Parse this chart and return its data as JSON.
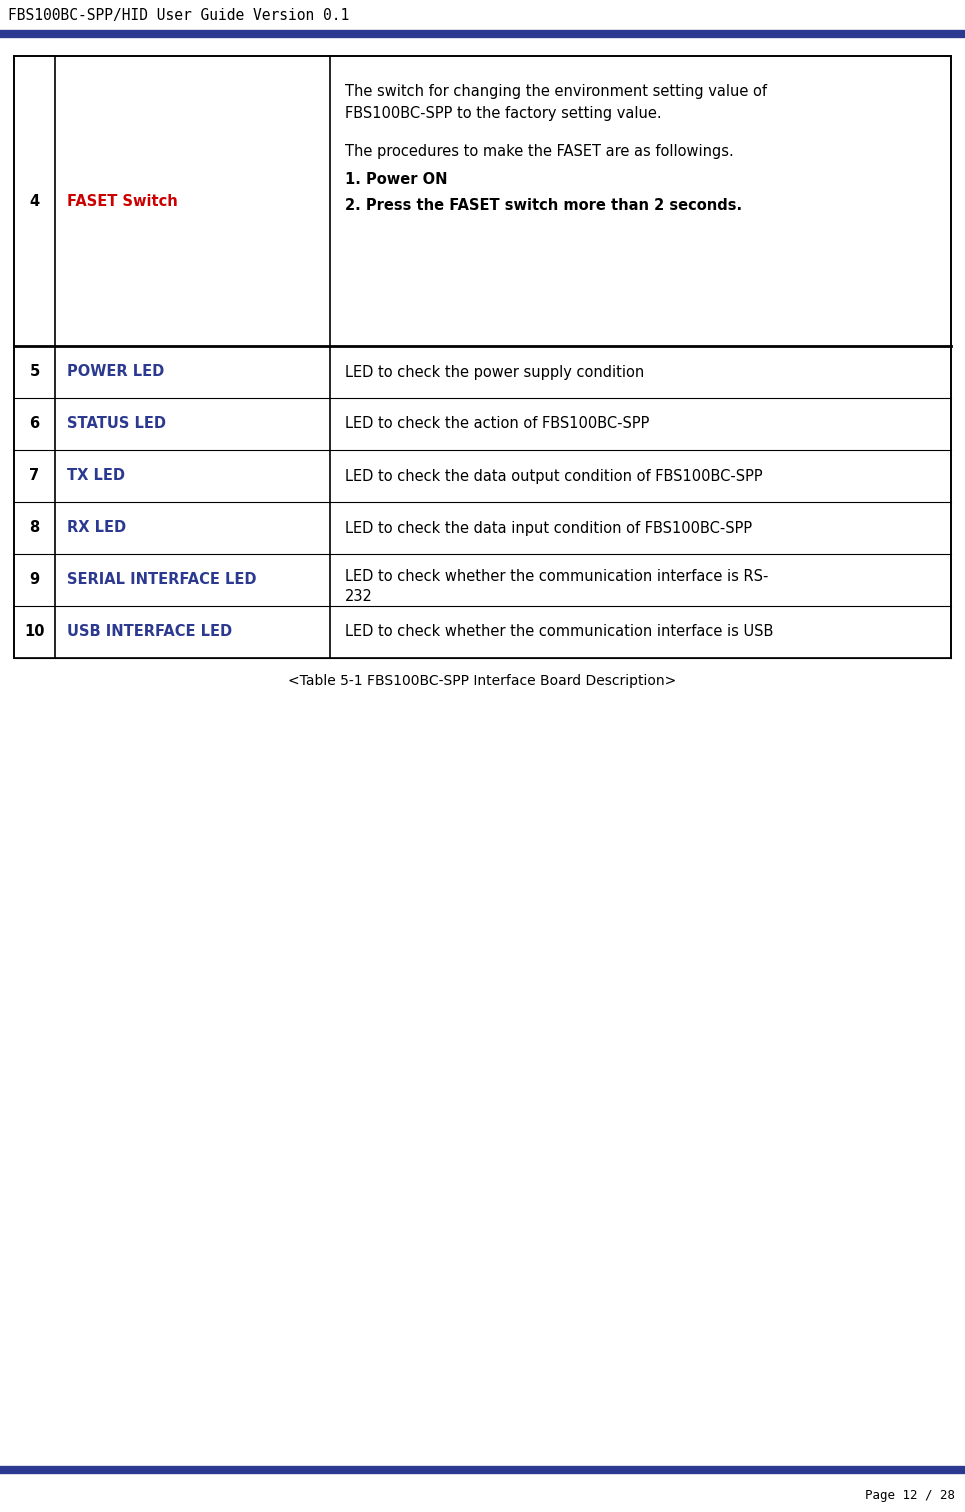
{
  "header_title": "FBS100BC-SPP/HID User Guide Version 0.1",
  "header_line_color": "#2B3990",
  "footer_line_color": "#2B3990",
  "footer_text": "Page 12 / 28",
  "blue_text_color": "#2B3990",
  "red_text_color": "#CC0000",
  "black_text_color": "#000000",
  "background_color": "#FFFFFF",
  "rows": [
    {
      "num": "4",
      "label": "FASET Switch",
      "label_color": "#CC0000",
      "tall": true
    },
    {
      "num": "5",
      "label": "POWER LED",
      "label_color": "#2B3990",
      "description": "LED to check the power supply condition",
      "tall": false
    },
    {
      "num": "6",
      "label": "STATUS LED",
      "label_color": "#2B3990",
      "description": "LED to check the action of FBS100BC-SPP",
      "tall": false
    },
    {
      "num": "7",
      "label": "TX LED",
      "label_color": "#2B3990",
      "description": "LED to check the data output condition of FBS100BC-SPP",
      "tall": false
    },
    {
      "num": "8",
      "label": "RX LED",
      "label_color": "#2B3990",
      "description": "LED to check the data input condition of FBS100BC-SPP",
      "tall": false
    },
    {
      "num": "9",
      "label": "SERIAL INTERFACE LED",
      "label_color": "#2B3990",
      "description_line1": "LED to check whether the communication interface is RS-",
      "description_line2": "232",
      "tall": false,
      "two_line_desc": true
    },
    {
      "num": "10",
      "label": "USB INTERFACE LED",
      "label_color": "#2B3990",
      "description": "LED to check whether the communication interface is USB",
      "tall": false
    }
  ],
  "caption": "<Table 5-1 FBS100BC-SPP Interface Board Description>",
  "faset_line1a": "The switch for changing the environment setting value of",
  "faset_line1b": "FBS100BC-SPP to the factory setting value.",
  "faset_line2": "The procedures to make the FASET are as followings.",
  "faset_bold1": "1. Power ON",
  "faset_bold2": "2. Press the FASET switch more than 2 seconds."
}
